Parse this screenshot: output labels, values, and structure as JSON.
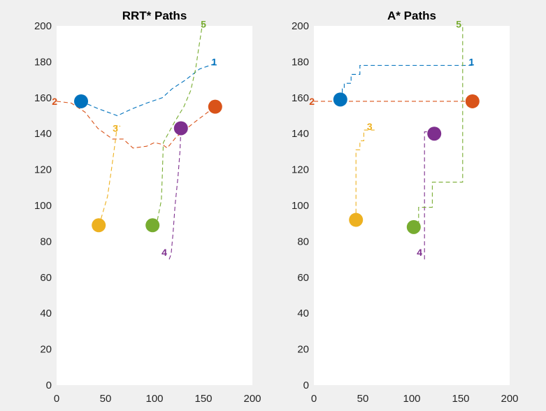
{
  "colors": {
    "1": "#0072BD",
    "2": "#D95319",
    "3": "#EDB120",
    "4": "#7E2F8E",
    "5": "#77AC30",
    "background": "#f0f0f0",
    "axes": "#ffffff",
    "text": "#262626"
  },
  "chart_data": [
    {
      "type": "line",
      "title": "RRT* Paths",
      "xlim": [
        0,
        200
      ],
      "ylim": [
        0,
        200
      ],
      "xticks": [
        "0",
        "50",
        "100",
        "150",
        "200"
      ],
      "yticks": [
        "0",
        "20",
        "40",
        "60",
        "80",
        "100",
        "120",
        "140",
        "160",
        "180",
        "200"
      ],
      "grid": false,
      "series": [
        {
          "name": "1",
          "points": [
            [
              25,
              158
            ],
            [
              42,
              154
            ],
            [
              62,
              150
            ],
            [
              78,
              154
            ],
            [
              92,
              157
            ],
            [
              108,
              160
            ],
            [
              118,
              165
            ],
            [
              132,
              170
            ],
            [
              146,
              176
            ],
            [
              162,
              179
            ]
          ],
          "label_at": [
            161,
            180
          ],
          "marker": [
            25,
            158
          ]
        },
        {
          "name": "2",
          "points": [
            [
              0,
              158
            ],
            [
              15,
              157
            ],
            [
              29,
              152
            ],
            [
              42,
              143
            ],
            [
              57,
              137
            ],
            [
              68,
              137
            ],
            [
              78,
              132
            ],
            [
              92,
              133
            ],
            [
              100,
              135
            ],
            [
              108,
              134
            ],
            [
              113,
              132
            ],
            [
              122,
              138
            ],
            [
              140,
              146
            ],
            [
              162,
              155
            ]
          ],
          "label_at": [
            -2,
            158
          ],
          "marker": [
            162,
            155
          ]
        },
        {
          "name": "3",
          "points": [
            [
              43,
              89
            ],
            [
              45,
              92
            ],
            [
              52,
              105
            ],
            [
              56,
              120
            ],
            [
              60,
              136
            ],
            [
              62,
              145
            ],
            [
              65,
              144
            ]
          ],
          "label_at": [
            60,
            143
          ],
          "marker": [
            43,
            89
          ]
        },
        {
          "name": "4",
          "points": [
            [
              115,
              70
            ],
            [
              117,
              73
            ],
            [
              119,
              85
            ],
            [
              121,
              100
            ],
            [
              124,
              116
            ],
            [
              126,
              130
            ],
            [
              127,
              143
            ]
          ],
          "label_at": [
            110,
            74
          ],
          "marker": [
            127,
            143
          ]
        },
        {
          "name": "5",
          "points": [
            [
              98,
              89
            ],
            [
              103,
              92
            ],
            [
              107,
              103
            ],
            [
              108,
              117
            ],
            [
              109,
              135
            ],
            [
              114,
              140
            ],
            [
              120,
              146
            ],
            [
              130,
              155
            ],
            [
              137,
              164
            ],
            [
              142,
              176
            ],
            [
              145,
              187
            ],
            [
              149,
              201
            ]
          ],
          "label_at": [
            150,
            201
          ],
          "marker": [
            98,
            89
          ]
        }
      ]
    },
    {
      "type": "line",
      "title": "A* Paths",
      "xlim": [
        0,
        200
      ],
      "ylim": [
        0,
        200
      ],
      "xticks": [
        "0",
        "50",
        "100",
        "150",
        "200"
      ],
      "yticks": [
        "0",
        "20",
        "40",
        "60",
        "80",
        "100",
        "120",
        "140",
        "160",
        "180",
        "200"
      ],
      "grid": false,
      "series": [
        {
          "name": "1",
          "points": [
            [
              27,
              159
            ],
            [
              27,
              159
            ],
            [
              29,
              162
            ],
            [
              29,
              165
            ],
            [
              31,
              165
            ],
            [
              31,
              168
            ],
            [
              38,
              168
            ],
            [
              38,
              173
            ],
            [
              47,
              173
            ],
            [
              47,
              178
            ],
            [
              162,
              178
            ]
          ],
          "label_at": [
            161,
            180
          ],
          "marker": [
            27,
            159
          ]
        },
        {
          "name": "2",
          "points": [
            [
              0,
              158
            ],
            [
              162,
              158
            ]
          ],
          "label_at": [
            -2,
            158
          ],
          "marker": [
            162,
            158
          ]
        },
        {
          "name": "3",
          "points": [
            [
              43,
              92
            ],
            [
              43,
              131
            ],
            [
              47,
              131
            ],
            [
              47,
              136
            ],
            [
              51,
              136
            ],
            [
              51,
              142
            ],
            [
              62,
              142
            ]
          ],
          "label_at": [
            57,
            144
          ],
          "marker": [
            43,
            92
          ]
        },
        {
          "name": "4",
          "points": [
            [
              113,
              70
            ],
            [
              113,
              141
            ],
            [
              121,
              141
            ]
          ],
          "label_at": [
            108,
            74
          ],
          "marker": [
            123,
            140
          ]
        },
        {
          "name": "5",
          "points": [
            [
              102,
              88
            ],
            [
              107,
              88
            ],
            [
              107,
              99
            ],
            [
              121,
              99
            ],
            [
              121,
              113
            ],
            [
              152,
              113
            ],
            [
              152,
              201
            ]
          ],
          "label_at": [
            148,
            201
          ],
          "marker": [
            102,
            88
          ]
        }
      ]
    }
  ]
}
